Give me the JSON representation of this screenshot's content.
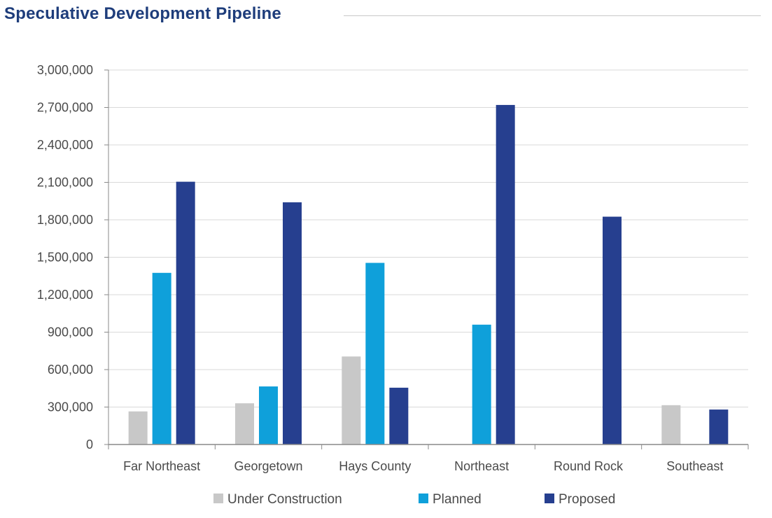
{
  "chart_data": {
    "type": "bar",
    "title": "Speculative Development Pipeline",
    "xlabel": "",
    "ylabel": "",
    "ylim": [
      0,
      3000000
    ],
    "yticks": [
      0,
      300000,
      600000,
      900000,
      1200000,
      1500000,
      1800000,
      2100000,
      2400000,
      2700000,
      3000000
    ],
    "ytick_labels": [
      "0",
      "300,000",
      "600,000",
      "900,000",
      "1,200,000",
      "1,500,000",
      "1,800,000",
      "2,100,000",
      "2,400,000",
      "2,700,000",
      "3,000,000"
    ],
    "grid": true,
    "legend_position": "bottom",
    "categories": [
      "Far Northeast",
      "Georgetown",
      "Hays County",
      "Northeast",
      "Round Rock",
      "Southeast"
    ],
    "series": [
      {
        "name": "Under Construction",
        "color": "#c8c8c8",
        "values": [
          265000,
          330000,
          705000,
          0,
          0,
          315000
        ]
      },
      {
        "name": "Planned",
        "color": "#0fa0da",
        "values": [
          1375000,
          465000,
          1455000,
          960000,
          0,
          0
        ]
      },
      {
        "name": "Proposed",
        "color": "#263f8f",
        "values": [
          2105000,
          1940000,
          455000,
          2720000,
          1825000,
          280000
        ]
      }
    ]
  }
}
